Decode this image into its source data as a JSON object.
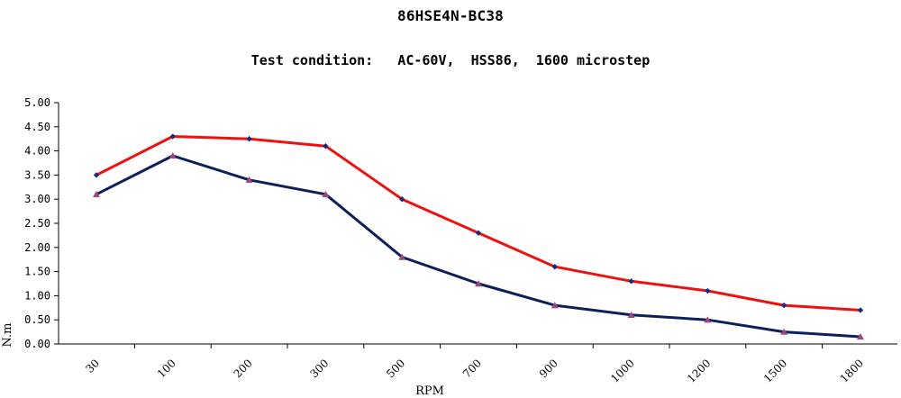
{
  "chart_data": {
    "type": "line",
    "title": "86HSE4N-BC38",
    "subtitle": "Test condition:   AC-60V,  HSS86,  1600 microstep",
    "xlabel": "RPM",
    "ylabel": "N.m",
    "categories": [
      "30",
      "100",
      "200",
      "300",
      "500",
      "700",
      "900",
      "1000",
      "1200",
      "1500",
      "1800"
    ],
    "ylim": [
      0,
      5
    ],
    "yticks": [
      "0.00",
      "0.50",
      "1.00",
      "1.50",
      "2.00",
      "2.50",
      "3.00",
      "3.50",
      "4.00",
      "4.50",
      "5.00"
    ],
    "grid": false,
    "series": [
      {
        "color": "#ee1111",
        "marker": "diamond",
        "marker_color": "#1a2a7a",
        "values": [
          3.5,
          4.3,
          4.25,
          4.1,
          3.0,
          2.3,
          1.6,
          1.3,
          1.1,
          0.8,
          0.7
        ]
      },
      {
        "color": "#0d1f5c",
        "marker": "triangle",
        "marker_color": "#9b4a7a",
        "values": [
          3.1,
          3.9,
          3.4,
          3.1,
          1.8,
          1.25,
          0.8,
          0.6,
          0.5,
          0.25,
          0.15
        ]
      }
    ]
  }
}
